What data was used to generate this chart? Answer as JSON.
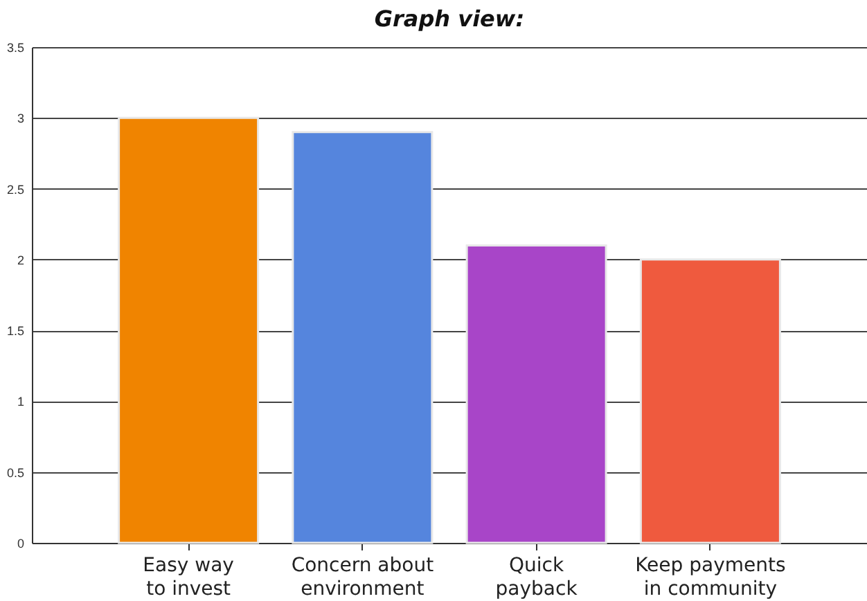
{
  "chart_data": {
    "type": "bar",
    "title": "Graph view:",
    "categories": [
      "Easy way to invest",
      "Concern about environment",
      "Quick payback",
      "Keep payments in community"
    ],
    "values": [
      3.0,
      2.9,
      2.1,
      2.0
    ],
    "colors": [
      "#f08400",
      "#5585dd",
      "#a845c8",
      "#ef5a3e"
    ],
    "ylim": [
      0,
      3.5
    ],
    "yticks": [
      0,
      0.5,
      1,
      1.5,
      2,
      2.5,
      3,
      3.5
    ],
    "grid": "y"
  }
}
